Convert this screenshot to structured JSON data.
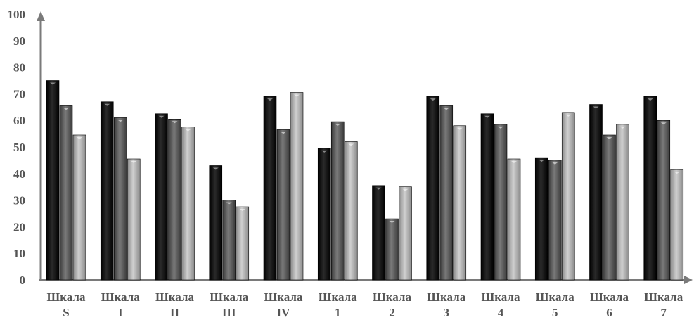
{
  "chart_data": {
    "type": "bar",
    "title": "",
    "xlabel": "",
    "ylabel": "",
    "ylim": [
      0,
      100
    ],
    "yticks": [
      0,
      10,
      20,
      30,
      40,
      50,
      60,
      70,
      80,
      90,
      100
    ],
    "grid": false,
    "legend": "none",
    "categories": [
      [
        "Шкала",
        "S"
      ],
      [
        "Шкала",
        "I"
      ],
      [
        "Шкала",
        "II"
      ],
      [
        "Шкала",
        "III"
      ],
      [
        "Шкала",
        "IV"
      ],
      [
        "Шкала",
        "1"
      ],
      [
        "Шкала",
        "2"
      ],
      [
        "Шкала",
        "3"
      ],
      [
        "Шкала",
        "4"
      ],
      [
        "Шкала",
        "5"
      ],
      [
        "Шкала",
        "6"
      ],
      [
        "Шкала",
        "7"
      ]
    ],
    "series": [
      {
        "color": "#0a0a0a",
        "values": [
          75,
          67,
          62.5,
          43,
          69,
          49.5,
          35.5,
          69,
          62.5,
          46,
          66,
          69
        ]
      },
      {
        "color": "#5a5a5a",
        "values": [
          65.5,
          61,
          60.5,
          30,
          56.5,
          59.5,
          23,
          65.5,
          58.5,
          45,
          54.5,
          60
        ]
      },
      {
        "color": "#a6a6a6",
        "values": [
          54.5,
          45.5,
          57.5,
          27.5,
          70.5,
          52,
          35,
          58,
          45.5,
          63,
          58.5,
          41.5
        ]
      }
    ]
  }
}
